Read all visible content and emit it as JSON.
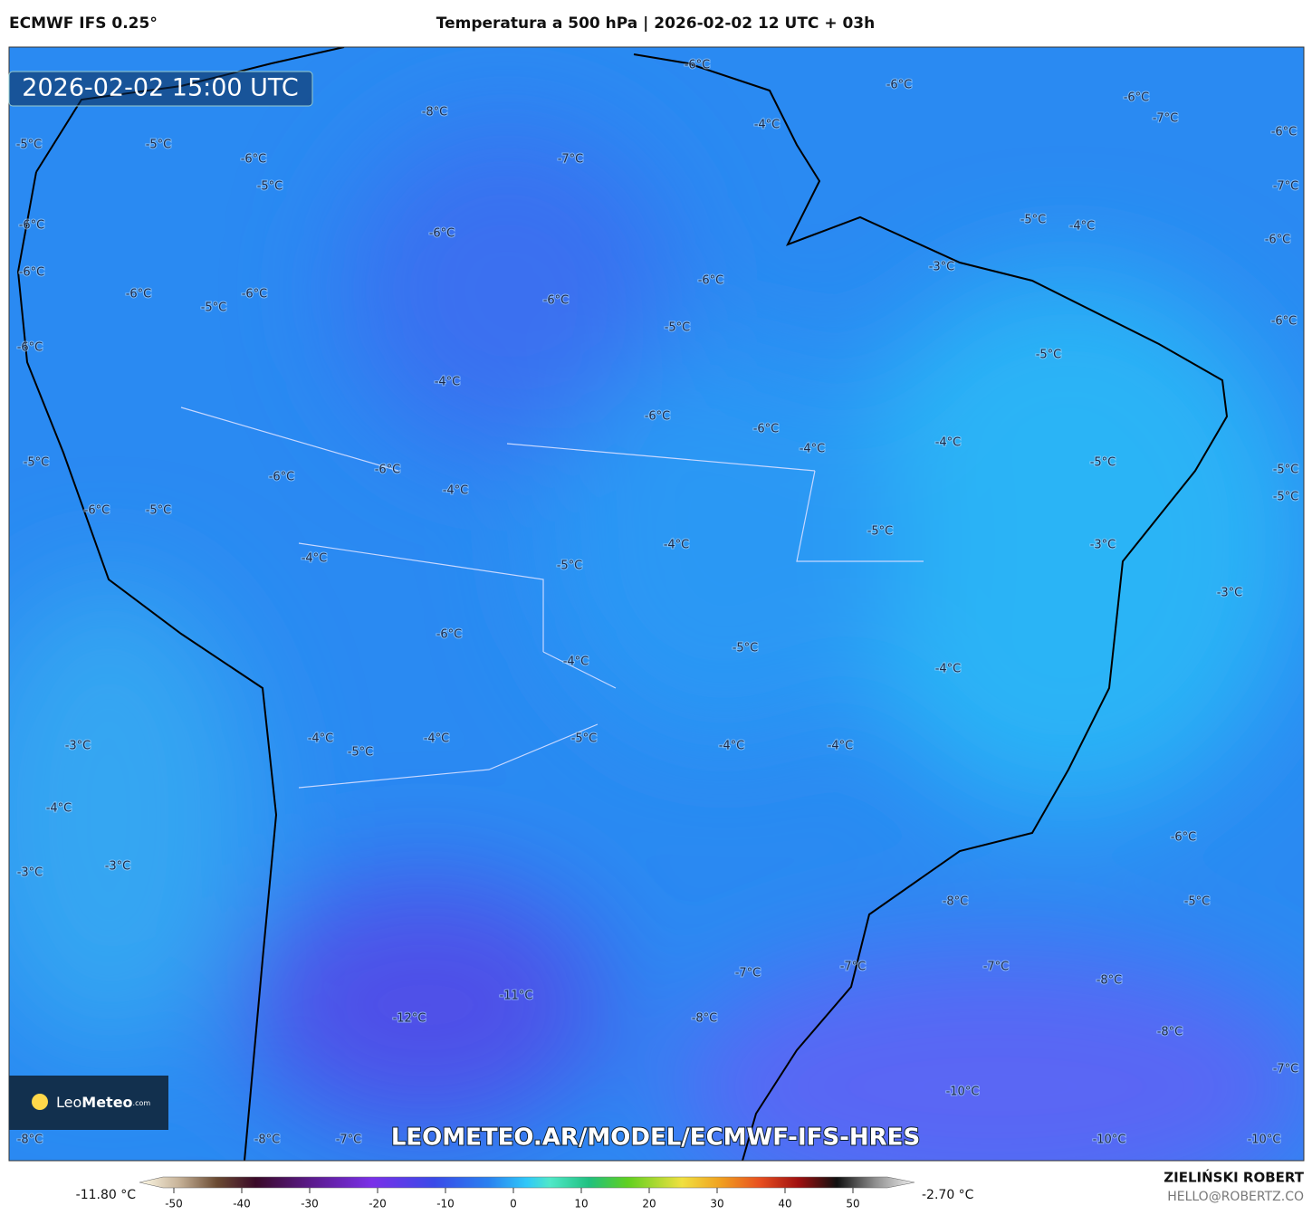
{
  "header": {
    "model": "ECMWF IFS 0.25°",
    "title": "Temperatura a 500 hPa | 2026-02-02 12 UTC + 03h"
  },
  "timestamp": "2026-02-02 15:00 UTC",
  "logo": {
    "light": "Leo",
    "bold": "Meteo",
    "suffix": ".com"
  },
  "watermark": "LEOMETEO.AR/MODEL/ECMWF-IFS-HRES",
  "labels": [
    "-6°C",
    "-6°C",
    "-6°C",
    "-7°C",
    "-6°C",
    "-8°C",
    "-4°C",
    "-5°C",
    "-5°C",
    "-6°C",
    "-7°C",
    "-5°C",
    "-7°C",
    "-6°C",
    "-6°C",
    "-5°C",
    "-4°C",
    "-6°C",
    "-6°C",
    "-3°C",
    "-6°C",
    "-6°C",
    "-6°C",
    "-6°C",
    "-5°C",
    "-6°C",
    "-5°C",
    "-6°C",
    "-5°C",
    "-4°C",
    "-6°C",
    "-6°C",
    "-4°C",
    "-4°C",
    "-5°C",
    "-5°C",
    "-5°C",
    "-6°C",
    "-6°C",
    "-4°C",
    "-5°C",
    "-6°C",
    "-5°C",
    "-5°C",
    "-3°C",
    "-4°C",
    "-4°C",
    "-5°C",
    "-3°C",
    "-6°C",
    "-5°C",
    "-4°C",
    "-4°C",
    "-3°C",
    "-4°C",
    "-5°C",
    "-4°C",
    "-5°C",
    "-4°C",
    "-4°C",
    "-4°C",
    "-6°C",
    "-3°C",
    "-3°C",
    "-8°C",
    "-5°C",
    "-7°C",
    "-7°C",
    "-7°C",
    "-8°C",
    "-11°C",
    "-12°C",
    "-8°C",
    "-8°C",
    "-7°C",
    "-10°C",
    "-8°C",
    "-8°C",
    "-7°C",
    "-10°C",
    "-10°C"
  ],
  "colorbar": {
    "min_label": "-11.80 °C",
    "max_label": "-2.70 °C",
    "ticks": [
      -50,
      -40,
      -30,
      -20,
      -10,
      0,
      10,
      20,
      30,
      40,
      50
    ]
  },
  "footer": {
    "author": "ZIELIŃSKI ROBERT",
    "email": "HELLO@ROBERTZ.CO"
  }
}
